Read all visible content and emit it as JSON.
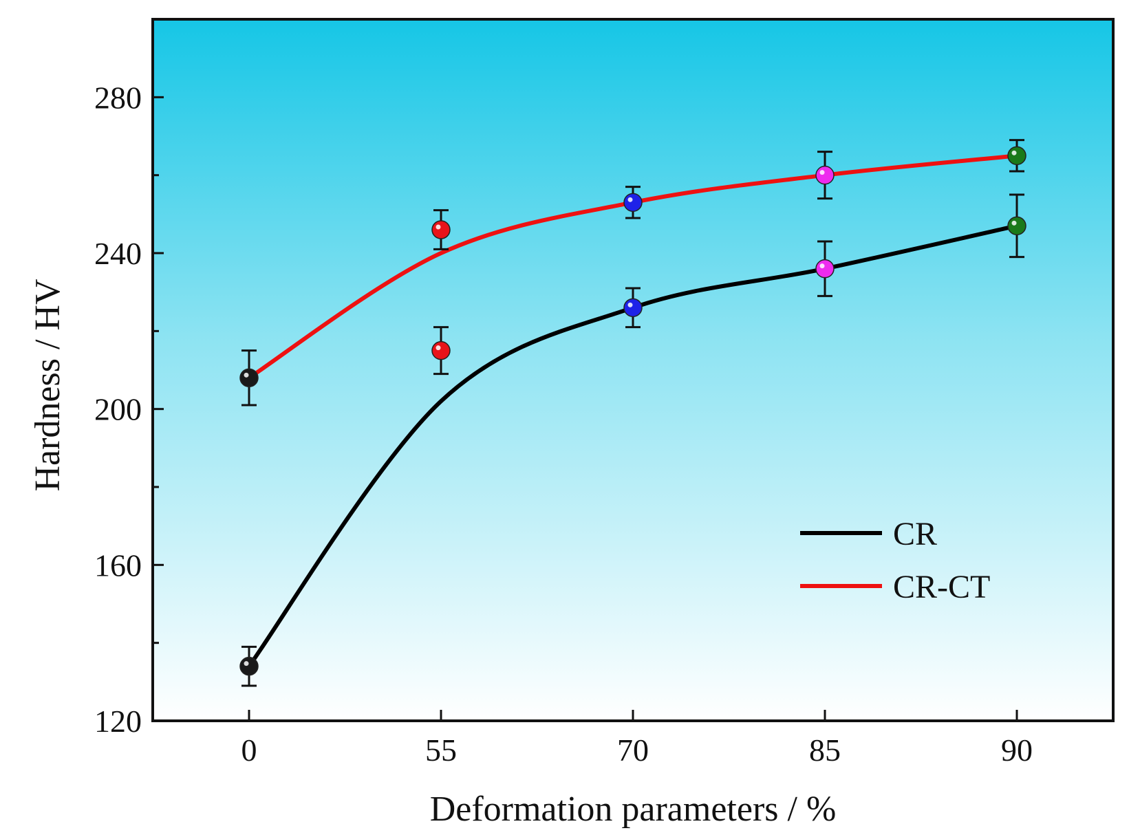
{
  "chart_data": {
    "type": "scatter",
    "title": "",
    "xlabel": "Deformation  parameters  / %",
    "ylabel": "Hardness / HV",
    "categories": [
      "0",
      "55",
      "70",
      "85",
      "90"
    ],
    "ylim": [
      120,
      300
    ],
    "yticks": [
      120,
      160,
      200,
      240,
      280
    ],
    "grid": false,
    "legend_position": "bottom-right",
    "point_colors": [
      "#1a1a1a",
      "#e8141a",
      "#1e22e8",
      "#ee2bee",
      "#1a7a1a"
    ],
    "series": [
      {
        "name": "CR",
        "line_color": "#000000",
        "values": [
          134,
          215,
          226,
          236,
          247
        ],
        "errors": [
          5,
          6,
          5,
          7,
          8
        ],
        "fit": [
          134,
          202,
          226,
          236,
          247
        ]
      },
      {
        "name": "CR-CT",
        "line_color": "#ee1111",
        "values": [
          208,
          246,
          253,
          260,
          265
        ],
        "errors": [
          7,
          5,
          4,
          6,
          4
        ],
        "fit": [
          208,
          240,
          253,
          260,
          265
        ]
      }
    ]
  }
}
